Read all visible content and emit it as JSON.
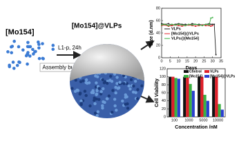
{
  "diagram": {
    "reactant": "[Mo154]",
    "product": "[Mo154]@VLPs",
    "condition": "L1-p, 24h",
    "buffer": "Assembly buffer"
  },
  "chart_data": [
    {
      "type": "line",
      "xlabel": "Days",
      "ylabel": "Size (d.nm)",
      "x": [
        0,
        2,
        4,
        6,
        8,
        10,
        12,
        14,
        16,
        18,
        20,
        22,
        24,
        26,
        28,
        29,
        30,
        31,
        32
      ],
      "series": [
        {
          "name": "VLPs",
          "color": "#222222",
          "values": [
            55,
            54,
            55,
            53,
            54,
            55,
            54,
            54,
            53,
            55,
            54,
            54,
            53,
            54,
            55,
            54,
            54,
            54,
            5
          ]
        },
        {
          "name": "[Mo154]@VLPs",
          "color": "#e0202a",
          "values": [
            52,
            53,
            51,
            52,
            53,
            52,
            51,
            52,
            53,
            52,
            51,
            52,
            53,
            52,
            52,
            51,
            52,
            null,
            null
          ]
        },
        {
          "name": "VLPs@[Mo154]",
          "color": "#3cb043",
          "values": [
            53,
            54,
            52,
            54,
            53,
            54,
            53,
            52,
            54,
            53,
            54,
            53,
            52,
            54,
            53,
            64,
            65,
            null,
            null
          ]
        }
      ],
      "xlim": [
        0,
        35
      ],
      "xticks": [
        0,
        5,
        10,
        15,
        20,
        25,
        30,
        35
      ],
      "ylim": [
        0,
        80
      ],
      "yticks": [
        0,
        20,
        40,
        60,
        80
      ],
      "legend": "center left"
    },
    {
      "type": "bar",
      "xlabel": "Concentration /nM",
      "ylabel": "Cell Viability",
      "categories": [
        "100",
        "1000",
        "5000",
        "10000"
      ],
      "series": [
        {
          "name": "Control",
          "color": "#111111",
          "values": [
            100,
            100,
            100,
            100
          ]
        },
        {
          "name": "VLPs",
          "color": "#e0202a",
          "values": [
            100,
            100,
            100,
            100
          ]
        },
        {
          "name": "[Mo154]",
          "color": "#3cb043",
          "values": [
            97,
            82,
            55,
            32
          ]
        },
        {
          "name": "[Mo154]@VLPs",
          "color": "#2a3fd0",
          "values": [
            95,
            65,
            40,
            18
          ]
        }
      ],
      "ylim": [
        0,
        120
      ],
      "yticks": [
        0,
        20,
        40,
        60,
        80,
        100,
        120
      ],
      "legend": "upper right"
    }
  ]
}
